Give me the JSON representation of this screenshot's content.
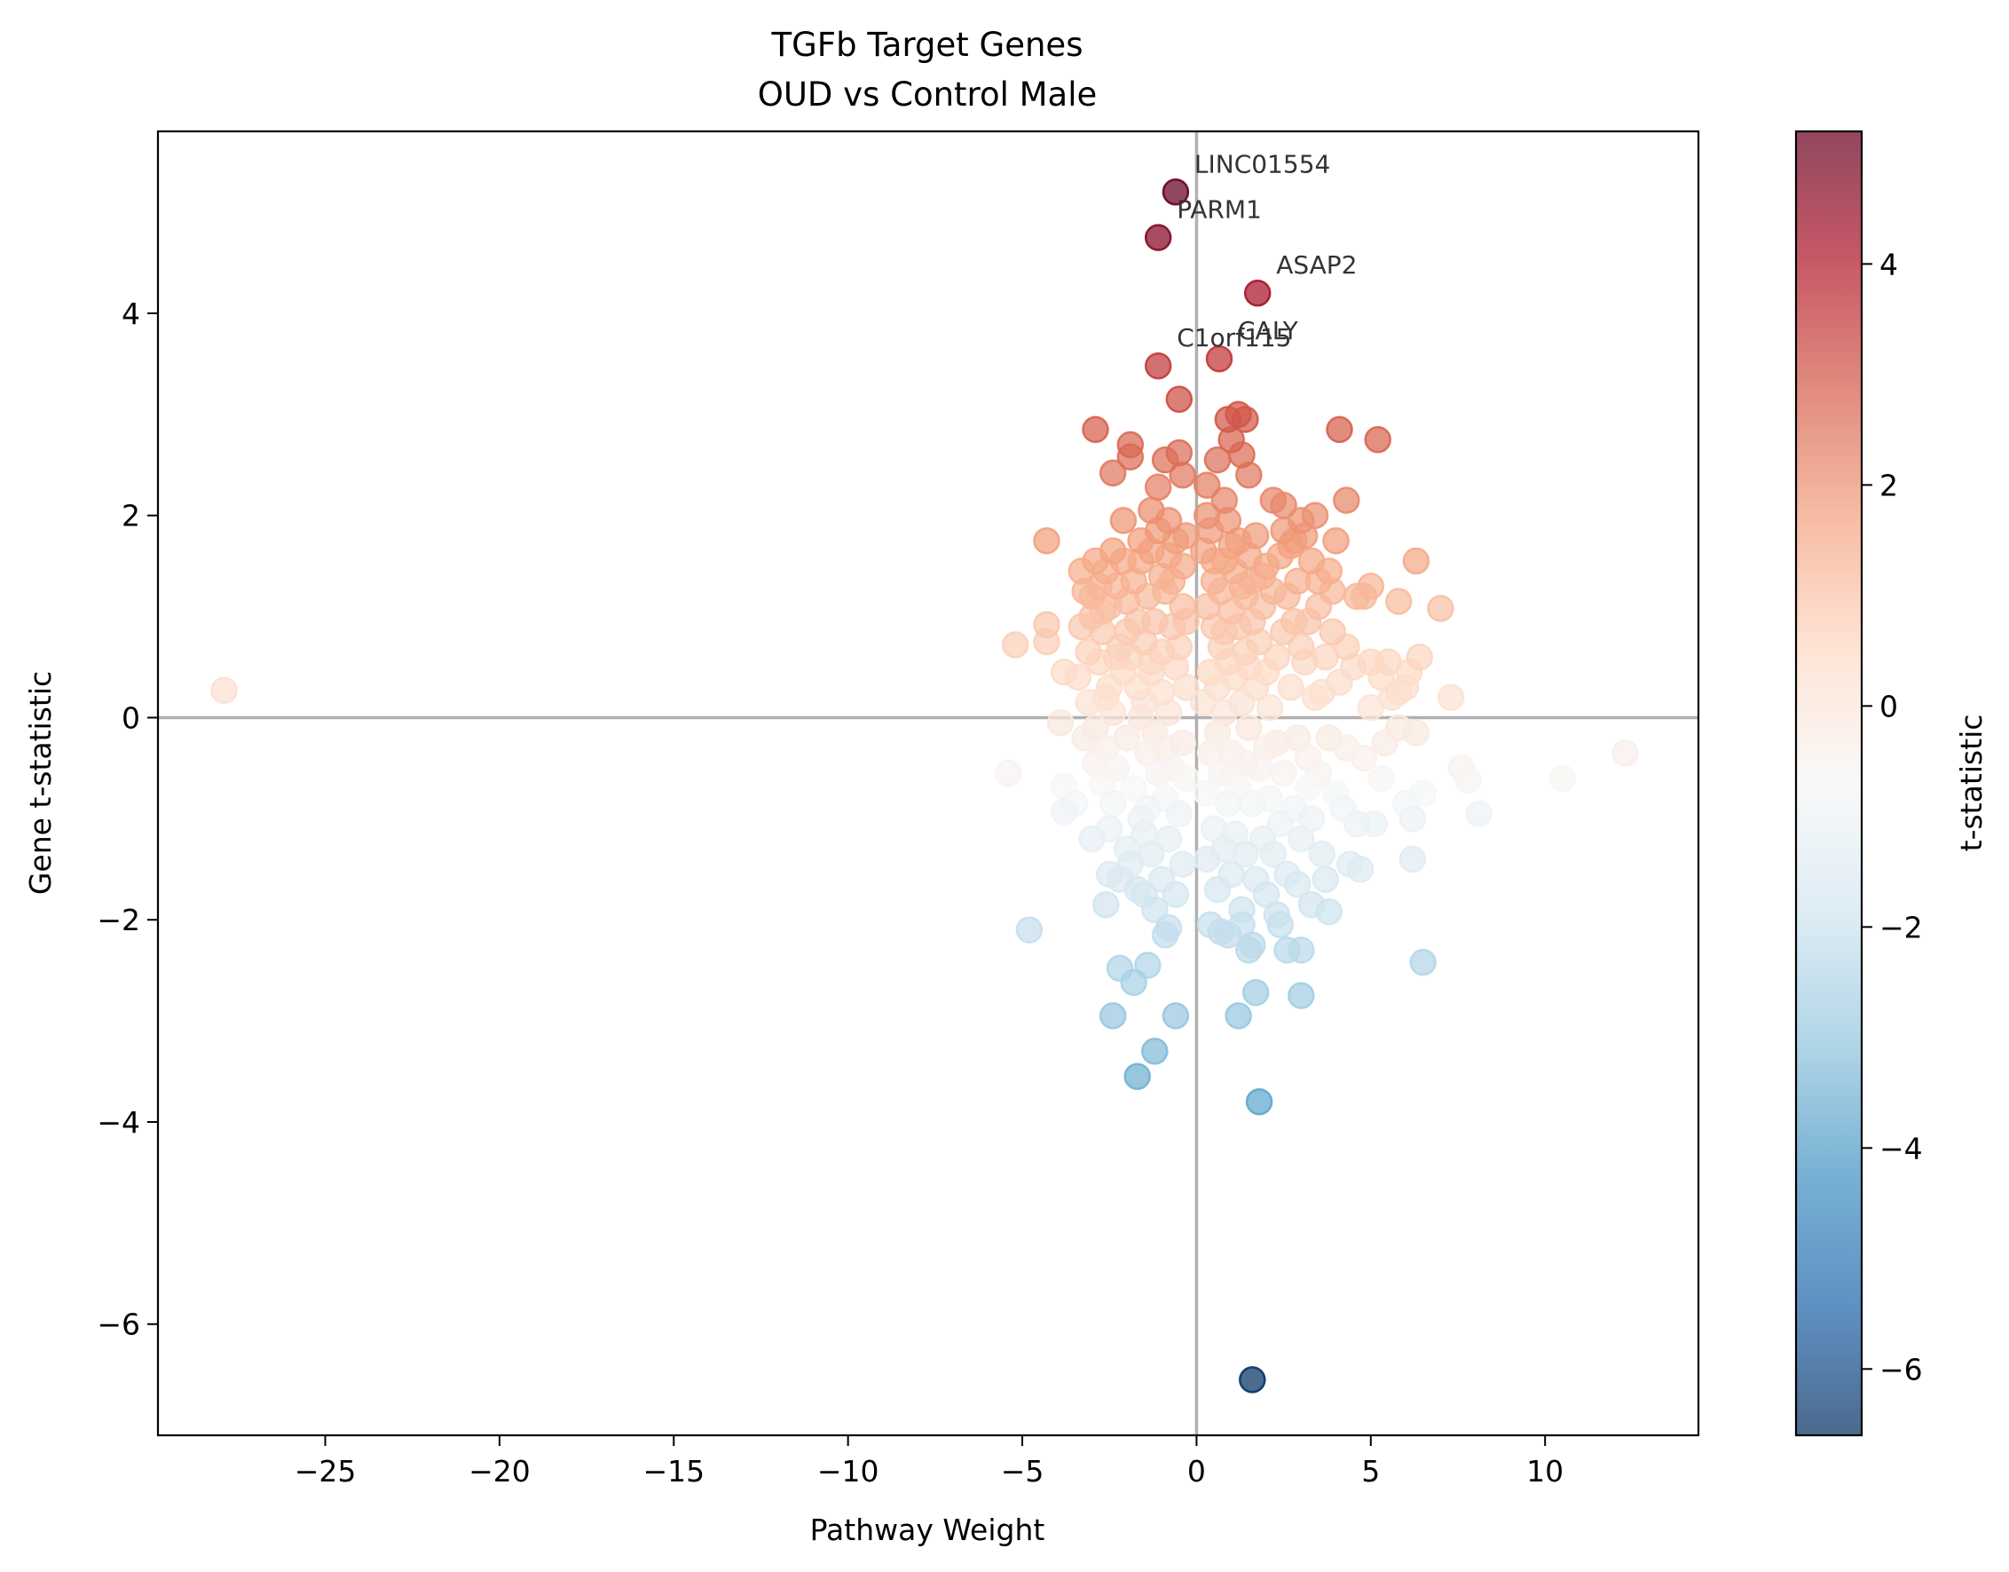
{
  "chart_data": {
    "type": "scatter",
    "title": "TGFb Target Genes",
    "subtitle": "OUD vs Control Male",
    "xlabel": "Pathway Weight",
    "ylabel": "Gene t-statistic",
    "xlim": [
      -29.8,
      14.4
    ],
    "ylim": [
      -7.1,
      5.8
    ],
    "xticks": [
      -25,
      -20,
      -15,
      -10,
      -5,
      0,
      5,
      10
    ],
    "yticks": [
      -6,
      -4,
      -2,
      0,
      2,
      4
    ],
    "xtick_labels": [
      "−25",
      "−20",
      "−15",
      "−10",
      "−5",
      "0",
      "5",
      "10"
    ],
    "ytick_labels": [
      "−6",
      "−4",
      "−2",
      "0",
      "2",
      "4"
    ],
    "grid": false,
    "reference_lines": {
      "x": 0,
      "y": 0
    },
    "colorbar": {
      "label": "t-statistic",
      "range": [
        -6.6,
        5.2
      ],
      "ticks": [
        -6,
        -4,
        -2,
        0,
        2,
        4
      ],
      "tick_labels": [
        "−6",
        "−4",
        "−2",
        "0",
        "2",
        "4"
      ],
      "colormap": [
        "#053061",
        "#2166ac",
        "#4393c3",
        "#92c5de",
        "#d1e5f0",
        "#f7f7f7",
        "#fddbc7",
        "#f4a582",
        "#d6604d",
        "#b2182b",
        "#67001f"
      ]
    },
    "annotations": [
      {
        "text": "LINC01554",
        "x": -0.6,
        "y": 5.2
      },
      {
        "text": "PARM1",
        "x": -1.1,
        "y": 4.75
      },
      {
        "text": "ASAP2",
        "x": 1.75,
        "y": 4.2
      },
      {
        "text": "CALY",
        "x": 0.65,
        "y": 3.55
      },
      {
        "text": "C1orf115",
        "x": -1.1,
        "y": 3.48
      }
    ],
    "points": [
      [
        -27.9,
        0.27
      ],
      [
        -5.2,
        0.72
      ],
      [
        -5.4,
        -0.55
      ],
      [
        -4.8,
        -2.1
      ],
      [
        -4.3,
        1.75
      ],
      [
        -4.3,
        0.92
      ],
      [
        -4.3,
        0.75
      ],
      [
        -3.9,
        -0.05
      ],
      [
        -3.8,
        0.45
      ],
      [
        -3.8,
        -0.93
      ],
      [
        -3.8,
        -0.68
      ],
      [
        -3.5,
        -0.85
      ],
      [
        -3.4,
        0.4
      ],
      [
        -3.3,
        0.9
      ],
      [
        -3.2,
        -0.2
      ],
      [
        -3.1,
        0.65
      ],
      [
        -3.0,
        -1.2
      ],
      [
        -3.0,
        1.2
      ],
      [
        -2.9,
        -0.45
      ],
      [
        -2.9,
        1.55
      ],
      [
        -2.9,
        2.85
      ],
      [
        -2.7,
        1.05
      ],
      [
        -2.6,
        -1.85
      ],
      [
        -2.6,
        0.2
      ],
      [
        -2.5,
        -1.1
      ],
      [
        -2.5,
        -1.55
      ],
      [
        -2.4,
        1.65
      ],
      [
        -2.4,
        -2.95
      ],
      [
        -2.4,
        2.42
      ],
      [
        -2.3,
        0.6
      ],
      [
        -2.2,
        -2.48
      ],
      [
        -2.1,
        1.95
      ],
      [
        -2.0,
        -1.3
      ],
      [
        -2.0,
        0.85
      ],
      [
        -1.9,
        2.7
      ],
      [
        -1.9,
        2.58
      ],
      [
        -1.8,
        -2.62
      ],
      [
        -1.7,
        -3.55
      ],
      [
        -1.7,
        -1.7
      ],
      [
        -1.6,
        1.75
      ],
      [
        -1.6,
        0.0
      ],
      [
        -1.5,
        -1.15
      ],
      [
        -1.4,
        -0.35
      ],
      [
        -1.4,
        -2.45
      ],
      [
        -1.3,
        2.05
      ],
      [
        -1.3,
        0.45
      ],
      [
        -1.2,
        -1.9
      ],
      [
        -1.2,
        -3.3
      ],
      [
        -1.1,
        3.48
      ],
      [
        -1.1,
        4.75
      ],
      [
        -1.1,
        2.28
      ],
      [
        -1.0,
        1.4
      ],
      [
        -0.9,
        2.55
      ],
      [
        -0.9,
        -0.8
      ],
      [
        -0.9,
        -2.15
      ],
      [
        -0.8,
        1.95
      ],
      [
        -0.8,
        -2.08
      ],
      [
        -0.7,
        0.9
      ],
      [
        -0.6,
        5.2
      ],
      [
        -0.6,
        -2.95
      ],
      [
        -0.5,
        3.15
      ],
      [
        -0.5,
        2.62
      ],
      [
        -0.4,
        2.4
      ],
      [
        -0.4,
        1.1
      ],
      [
        -0.3,
        0.3
      ],
      [
        -0.3,
        -0.6
      ],
      [
        0.3,
        2.3
      ],
      [
        0.3,
        2.0
      ],
      [
        0.4,
        -2.05
      ],
      [
        0.5,
        1.35
      ],
      [
        0.6,
        2.55
      ],
      [
        0.6,
        -0.15
      ],
      [
        0.65,
        3.55
      ],
      [
        0.7,
        -2.12
      ],
      [
        0.8,
        0.85
      ],
      [
        0.8,
        2.15
      ],
      [
        0.9,
        2.95
      ],
      [
        0.9,
        -2.15
      ],
      [
        1.0,
        2.75
      ],
      [
        1.0,
        1.7
      ],
      [
        1.1,
        -0.55
      ],
      [
        1.2,
        3.0
      ],
      [
        1.2,
        -2.95
      ],
      [
        1.3,
        2.6
      ],
      [
        1.3,
        -2.05
      ],
      [
        1.4,
        2.95
      ],
      [
        1.4,
        1.2
      ],
      [
        1.5,
        2.4
      ],
      [
        1.5,
        -2.3
      ],
      [
        1.5,
        0.5
      ],
      [
        1.6,
        -2.25
      ],
      [
        1.6,
        -6.55
      ],
      [
        1.7,
        -2.72
      ],
      [
        1.75,
        4.2
      ],
      [
        1.8,
        -3.8
      ],
      [
        1.9,
        1.4
      ],
      [
        2.0,
        -0.3
      ],
      [
        2.2,
        2.15
      ],
      [
        2.3,
        -1.95
      ],
      [
        2.4,
        -2.05
      ],
      [
        2.5,
        2.1
      ],
      [
        2.5,
        1.85
      ],
      [
        2.6,
        -2.3
      ],
      [
        2.8,
        1.75
      ],
      [
        2.9,
        -1.65
      ],
      [
        3.0,
        -2.75
      ],
      [
        3.0,
        -2.3
      ],
      [
        3.0,
        1.95
      ],
      [
        3.1,
        0.55
      ],
      [
        3.2,
        -0.7
      ],
      [
        3.3,
        -1.85
      ],
      [
        3.4,
        2.0
      ],
      [
        3.5,
        1.35
      ],
      [
        3.6,
        0.25
      ],
      [
        3.7,
        -1.6
      ],
      [
        3.8,
        1.45
      ],
      [
        3.8,
        -1.92
      ],
      [
        3.9,
        0.85
      ],
      [
        4.0,
        1.75
      ],
      [
        4.1,
        2.85
      ],
      [
        4.2,
        -0.9
      ],
      [
        4.3,
        2.15
      ],
      [
        4.3,
        0.7
      ],
      [
        4.4,
        -1.45
      ],
      [
        4.6,
        -1.05
      ],
      [
        4.7,
        -1.5
      ],
      [
        4.8,
        1.2
      ],
      [
        5.0,
        0.1
      ],
      [
        5.0,
        1.3
      ],
      [
        5.1,
        -1.05
      ],
      [
        5.2,
        2.75
      ],
      [
        5.3,
        0.4
      ],
      [
        5.4,
        -0.25
      ],
      [
        5.5,
        0.55
      ],
      [
        5.8,
        1.15
      ],
      [
        5.8,
        0.25
      ],
      [
        6.0,
        -0.85
      ],
      [
        6.1,
        0.45
      ],
      [
        6.2,
        -1.0
      ],
      [
        6.2,
        -1.4
      ],
      [
        6.3,
        -0.15
      ],
      [
        6.3,
        1.55
      ],
      [
        6.4,
        0.6
      ],
      [
        6.5,
        -2.42
      ],
      [
        6.5,
        -0.75
      ],
      [
        7.0,
        1.08
      ],
      [
        7.3,
        0.2
      ],
      [
        7.6,
        -0.5
      ],
      [
        7.8,
        -0.62
      ],
      [
        8.1,
        -0.95
      ],
      [
        10.5,
        -0.6
      ],
      [
        12.3,
        -0.35
      ],
      [
        -3.3,
        1.45
      ],
      [
        -3.2,
        1.25
      ],
      [
        -3.1,
        0.15
      ],
      [
        -3.0,
        1.0
      ],
      [
        -2.9,
        -0.1
      ],
      [
        -2.8,
        0.55
      ],
      [
        -2.8,
        1.3
      ],
      [
        -2.7,
        -0.65
      ],
      [
        -2.7,
        0.85
      ],
      [
        -2.6,
        1.45
      ],
      [
        -2.6,
        -0.3
      ],
      [
        -2.5,
        0.3
      ],
      [
        -2.5,
        1.1
      ],
      [
        -2.4,
        -0.85
      ],
      [
        -2.4,
        0.05
      ],
      [
        -2.3,
        1.3
      ],
      [
        -2.3,
        -0.5
      ],
      [
        -2.2,
        0.7
      ],
      [
        -2.2,
        -1.6
      ],
      [
        -2.1,
        0.45
      ],
      [
        -2.1,
        1.55
      ],
      [
        -2.0,
        -0.2
      ],
      [
        -2.0,
        1.15
      ],
      [
        -1.9,
        -1.45
      ],
      [
        -1.9,
        0.6
      ],
      [
        -1.8,
        1.35
      ],
      [
        -1.8,
        -0.7
      ],
      [
        -1.7,
        0.3
      ],
      [
        -1.7,
        0.95
      ],
      [
        -1.6,
        -1.0
      ],
      [
        -1.6,
        1.55
      ],
      [
        -1.5,
        0.15
      ],
      [
        -1.5,
        -1.75
      ],
      [
        -1.5,
        0.75
      ],
      [
        -1.4,
        1.2
      ],
      [
        -1.4,
        -0.9
      ],
      [
        -1.3,
        0.55
      ],
      [
        -1.3,
        -1.35
      ],
      [
        -1.3,
        1.65
      ],
      [
        -1.2,
        -0.15
      ],
      [
        -1.2,
        0.95
      ],
      [
        -1.1,
        -0.55
      ],
      [
        -1.1,
        1.85
      ],
      [
        -1.0,
        0.25
      ],
      [
        -1.0,
        -1.6
      ],
      [
        -1.0,
        0.65
      ],
      [
        -0.9,
        1.25
      ],
      [
        -0.9,
        -0.3
      ],
      [
        -0.8,
        0.05
      ],
      [
        -0.8,
        1.6
      ],
      [
        -0.8,
        -1.2
      ],
      [
        -0.7,
        -0.5
      ],
      [
        -0.7,
        1.35
      ],
      [
        -0.6,
        -1.75
      ],
      [
        -0.6,
        0.5
      ],
      [
        -0.6,
        1.75
      ],
      [
        -0.5,
        -0.95
      ],
      [
        -0.5,
        0.7
      ],
      [
        -0.4,
        -0.25
      ],
      [
        -0.4,
        1.5
      ],
      [
        -0.4,
        -1.45
      ],
      [
        -0.3,
        0.95
      ],
      [
        -0.3,
        1.8
      ],
      [
        0.2,
        0.15
      ],
      [
        0.2,
        1.65
      ],
      [
        0.3,
        -0.75
      ],
      [
        0.3,
        1.1
      ],
      [
        0.3,
        -1.4
      ],
      [
        0.4,
        0.45
      ],
      [
        0.4,
        1.85
      ],
      [
        0.4,
        -0.35
      ],
      [
        0.5,
        0.9
      ],
      [
        0.5,
        -1.1
      ],
      [
        0.5,
        1.55
      ],
      [
        0.6,
        0.3
      ],
      [
        0.6,
        -1.7
      ],
      [
        0.7,
        1.25
      ],
      [
        0.7,
        -0.55
      ],
      [
        0.7,
        0.7
      ],
      [
        0.8,
        -1.3
      ],
      [
        0.8,
        1.55
      ],
      [
        0.8,
        0.05
      ],
      [
        0.9,
        0.55
      ],
      [
        0.9,
        -0.85
      ],
      [
        0.9,
        1.95
      ],
      [
        1.0,
        -0.35
      ],
      [
        1.0,
        1.05
      ],
      [
        1.0,
        -1.55
      ],
      [
        1.1,
        0.4
      ],
      [
        1.1,
        1.45
      ],
      [
        1.1,
        -1.15
      ],
      [
        1.2,
        0.9
      ],
      [
        1.2,
        -0.7
      ],
      [
        1.2,
        1.75
      ],
      [
        1.3,
        0.15
      ],
      [
        1.3,
        -1.9
      ],
      [
        1.3,
        1.3
      ],
      [
        1.4,
        -0.45
      ],
      [
        1.4,
        0.65
      ],
      [
        1.4,
        -1.35
      ],
      [
        1.5,
        1.6
      ],
      [
        1.5,
        -0.1
      ],
      [
        1.6,
        0.95
      ],
      [
        1.6,
        -0.85
      ],
      [
        1.6,
        1.35
      ],
      [
        1.7,
        0.3
      ],
      [
        1.7,
        -1.6
      ],
      [
        1.7,
        1.8
      ],
      [
        1.8,
        -0.5
      ],
      [
        1.8,
        0.75
      ],
      [
        1.9,
        -1.2
      ],
      [
        1.9,
        1.1
      ],
      [
        2.0,
        0.45
      ],
      [
        2.0,
        -1.75
      ],
      [
        2.0,
        1.5
      ],
      [
        2.1,
        -0.8
      ],
      [
        2.1,
        0.1
      ],
      [
        2.2,
        1.25
      ],
      [
        2.2,
        -1.35
      ],
      [
        2.3,
        0.6
      ],
      [
        2.3,
        -0.25
      ],
      [
        2.4,
        1.6
      ],
      [
        2.4,
        -1.05
      ],
      [
        2.5,
        0.85
      ],
      [
        2.5,
        -0.55
      ],
      [
        2.6,
        1.2
      ],
      [
        2.6,
        -1.55
      ],
      [
        2.7,
        0.3
      ],
      [
        2.7,
        1.7
      ],
      [
        2.8,
        -0.9
      ],
      [
        2.8,
        0.95
      ],
      [
        2.9,
        -0.2
      ],
      [
        2.9,
        1.35
      ],
      [
        3.0,
        -1.2
      ],
      [
        3.0,
        0.7
      ],
      [
        3.1,
        1.8
      ],
      [
        3.2,
        -0.4
      ],
      [
        3.2,
        0.95
      ],
      [
        3.3,
        -1.0
      ],
      [
        3.3,
        1.55
      ],
      [
        3.4,
        0.2
      ],
      [
        3.5,
        -0.55
      ],
      [
        3.5,
        1.1
      ],
      [
        3.6,
        -1.35
      ],
      [
        3.7,
        0.6
      ],
      [
        3.8,
        -0.2
      ],
      [
        3.9,
        1.25
      ],
      [
        4.0,
        -0.75
      ],
      [
        4.1,
        0.35
      ],
      [
        4.3,
        -0.3
      ],
      [
        4.5,
        0.5
      ],
      [
        4.6,
        1.2
      ],
      [
        4.8,
        -0.4
      ],
      [
        5.0,
        0.55
      ],
      [
        5.3,
        -0.6
      ],
      [
        5.6,
        0.2
      ],
      [
        5.8,
        -0.1
      ],
      [
        6.0,
        0.3
      ]
    ]
  }
}
